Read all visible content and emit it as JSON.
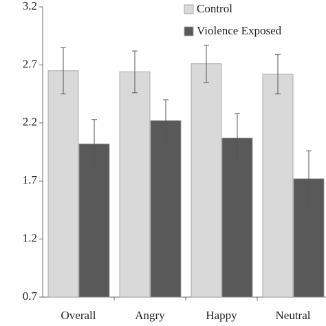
{
  "chart_data": {
    "type": "bar",
    "categories": [
      "Overall",
      "Angry",
      "Happy",
      "Neutral"
    ],
    "series": [
      {
        "name": "Control",
        "color": "#d9d9d9",
        "values": [
          2.65,
          2.64,
          2.71,
          2.62
        ],
        "errors": [
          0.2,
          0.18,
          0.16,
          0.17
        ]
      },
      {
        "name": "Violence Exposed",
        "color": "#595959",
        "values": [
          2.02,
          2.22,
          2.07,
          1.72
        ],
        "errors": [
          0.21,
          0.18,
          0.21,
          0.24
        ]
      }
    ],
    "ylim": [
      0.7,
      3.2
    ],
    "yticks": [
      0.7,
      1.2,
      1.7,
      2.2,
      2.7,
      3.2
    ],
    "grid": false,
    "legend": "top-right"
  }
}
